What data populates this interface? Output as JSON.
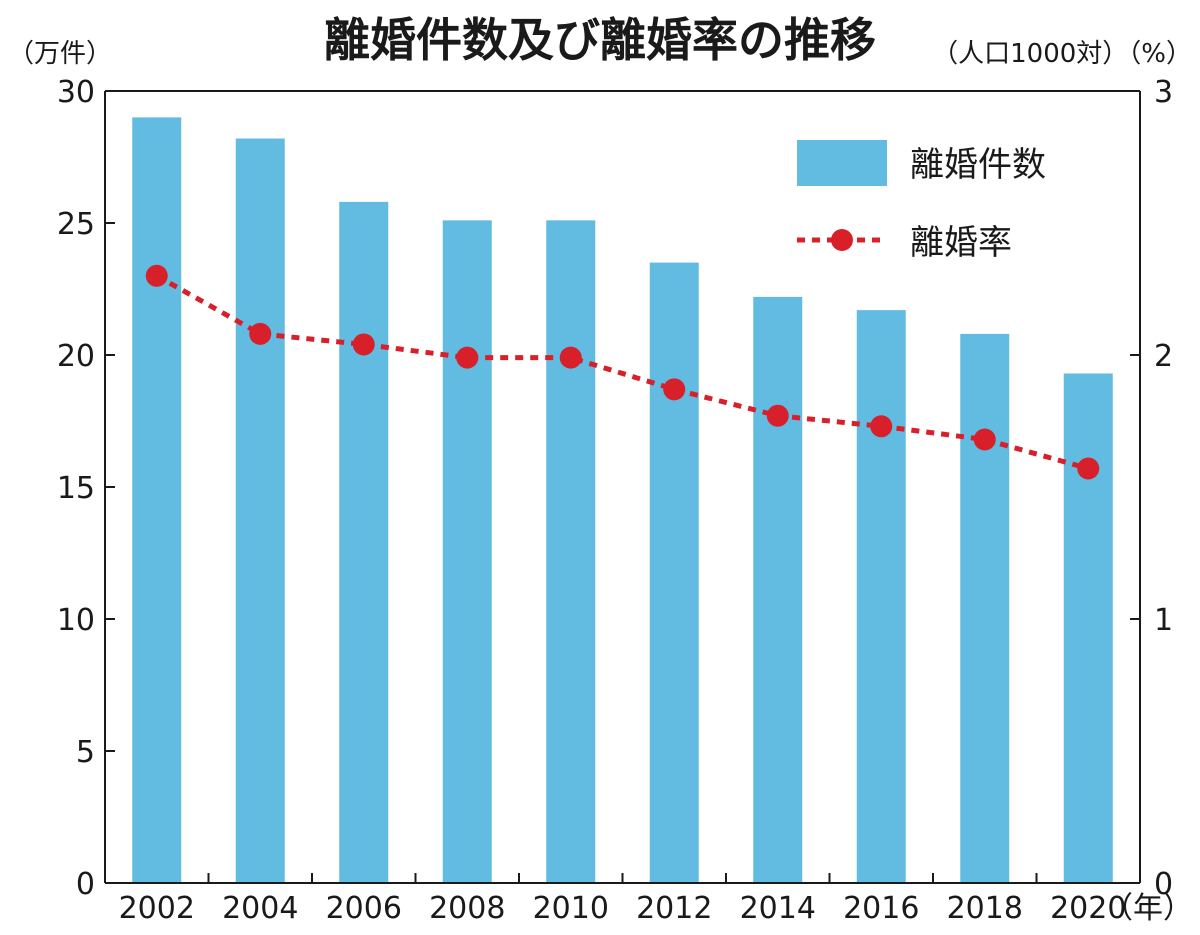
{
  "chart_data": {
    "type": "bar",
    "title": "離婚件数及び離婚率の推移",
    "y_left_unit": "（万件）",
    "y_right_unit": "（人口1000対）（%）",
    "x_unit": "（年）",
    "categories": [
      "2002",
      "2004",
      "2006",
      "2008",
      "2010",
      "2012",
      "2014",
      "2016",
      "2018",
      "2020"
    ],
    "series": [
      {
        "name": "離婚件数",
        "kind": "bar",
        "axis": "left",
        "values": [
          29.0,
          28.2,
          25.8,
          25.1,
          25.1,
          23.5,
          22.2,
          21.7,
          20.8,
          19.3
        ]
      },
      {
        "name": "離婚率",
        "kind": "line",
        "axis": "right",
        "style": "dotted-with-markers",
        "values": [
          2.3,
          2.08,
          2.04,
          1.99,
          1.99,
          1.87,
          1.77,
          1.73,
          1.68,
          1.57
        ]
      }
    ],
    "y_left_range": [
      0,
      30
    ],
    "y_left_ticks": [
      "0",
      "5",
      "10",
      "15",
      "20",
      "25",
      "30"
    ],
    "y_right_range": [
      0,
      3
    ],
    "y_right_ticks": [
      "0",
      "1",
      "2",
      "3"
    ],
    "legend_position": "top-right",
    "grid": false,
    "colors": {
      "bar": "#62bbe0",
      "line": "#d7202a",
      "axis": "#1a1a1a"
    }
  }
}
